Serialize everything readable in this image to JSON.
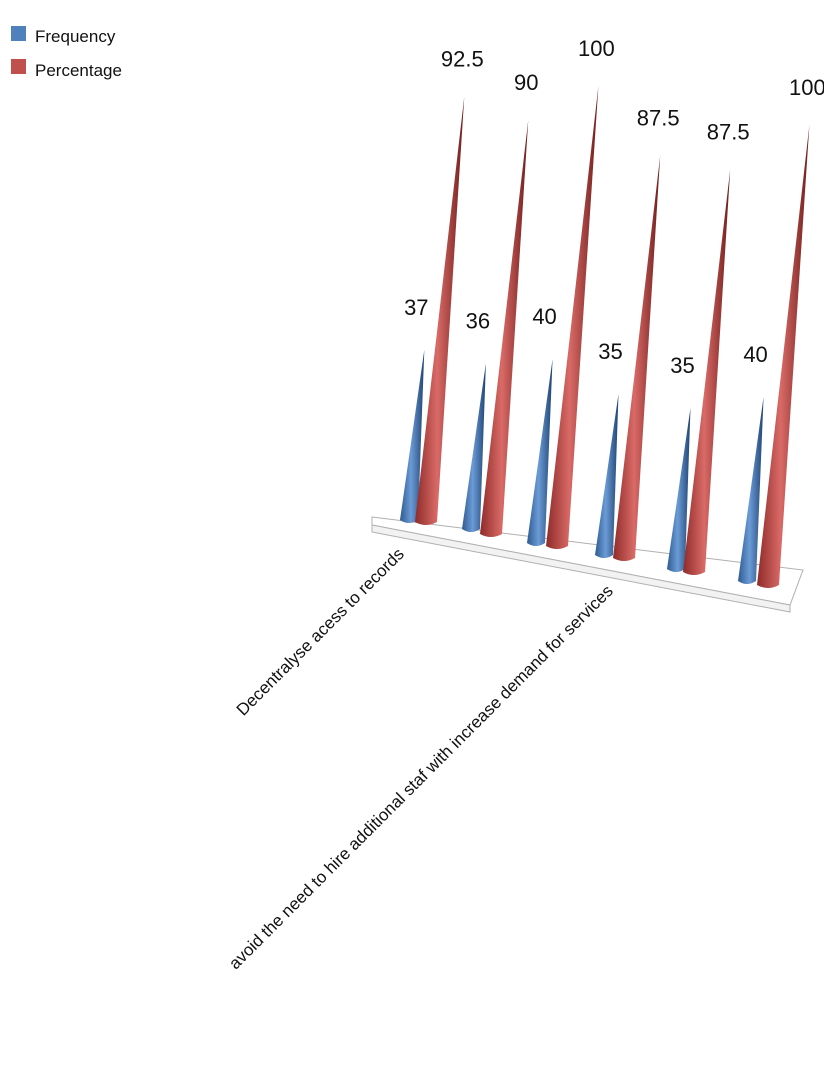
{
  "chart_data": {
    "type": "bar",
    "style": "3d-cone",
    "legend_position": "top-left",
    "title": "",
    "xlabel": "",
    "ylabel": "",
    "ylim": [
      0,
      100
    ],
    "grid": false,
    "categories": [
      "Decentralyse acess to records",
      "avoid the need to hire additional staf with increase demand for services",
      "",
      "",
      "",
      ""
    ],
    "series": [
      {
        "name": "Frequency",
        "color": "#4f81bd",
        "values": [
          37,
          36,
          40,
          35,
          35,
          40
        ],
        "labels": [
          "37",
          "36",
          "40",
          "35",
          "35",
          "40"
        ]
      },
      {
        "name": "Percentage",
        "color": "#c0504d",
        "values": [
          92.5,
          90,
          100,
          87.5,
          87.5,
          100
        ],
        "labels": [
          "92.5",
          "90",
          "100",
          "87.5",
          "87.5",
          "100"
        ]
      }
    ]
  }
}
